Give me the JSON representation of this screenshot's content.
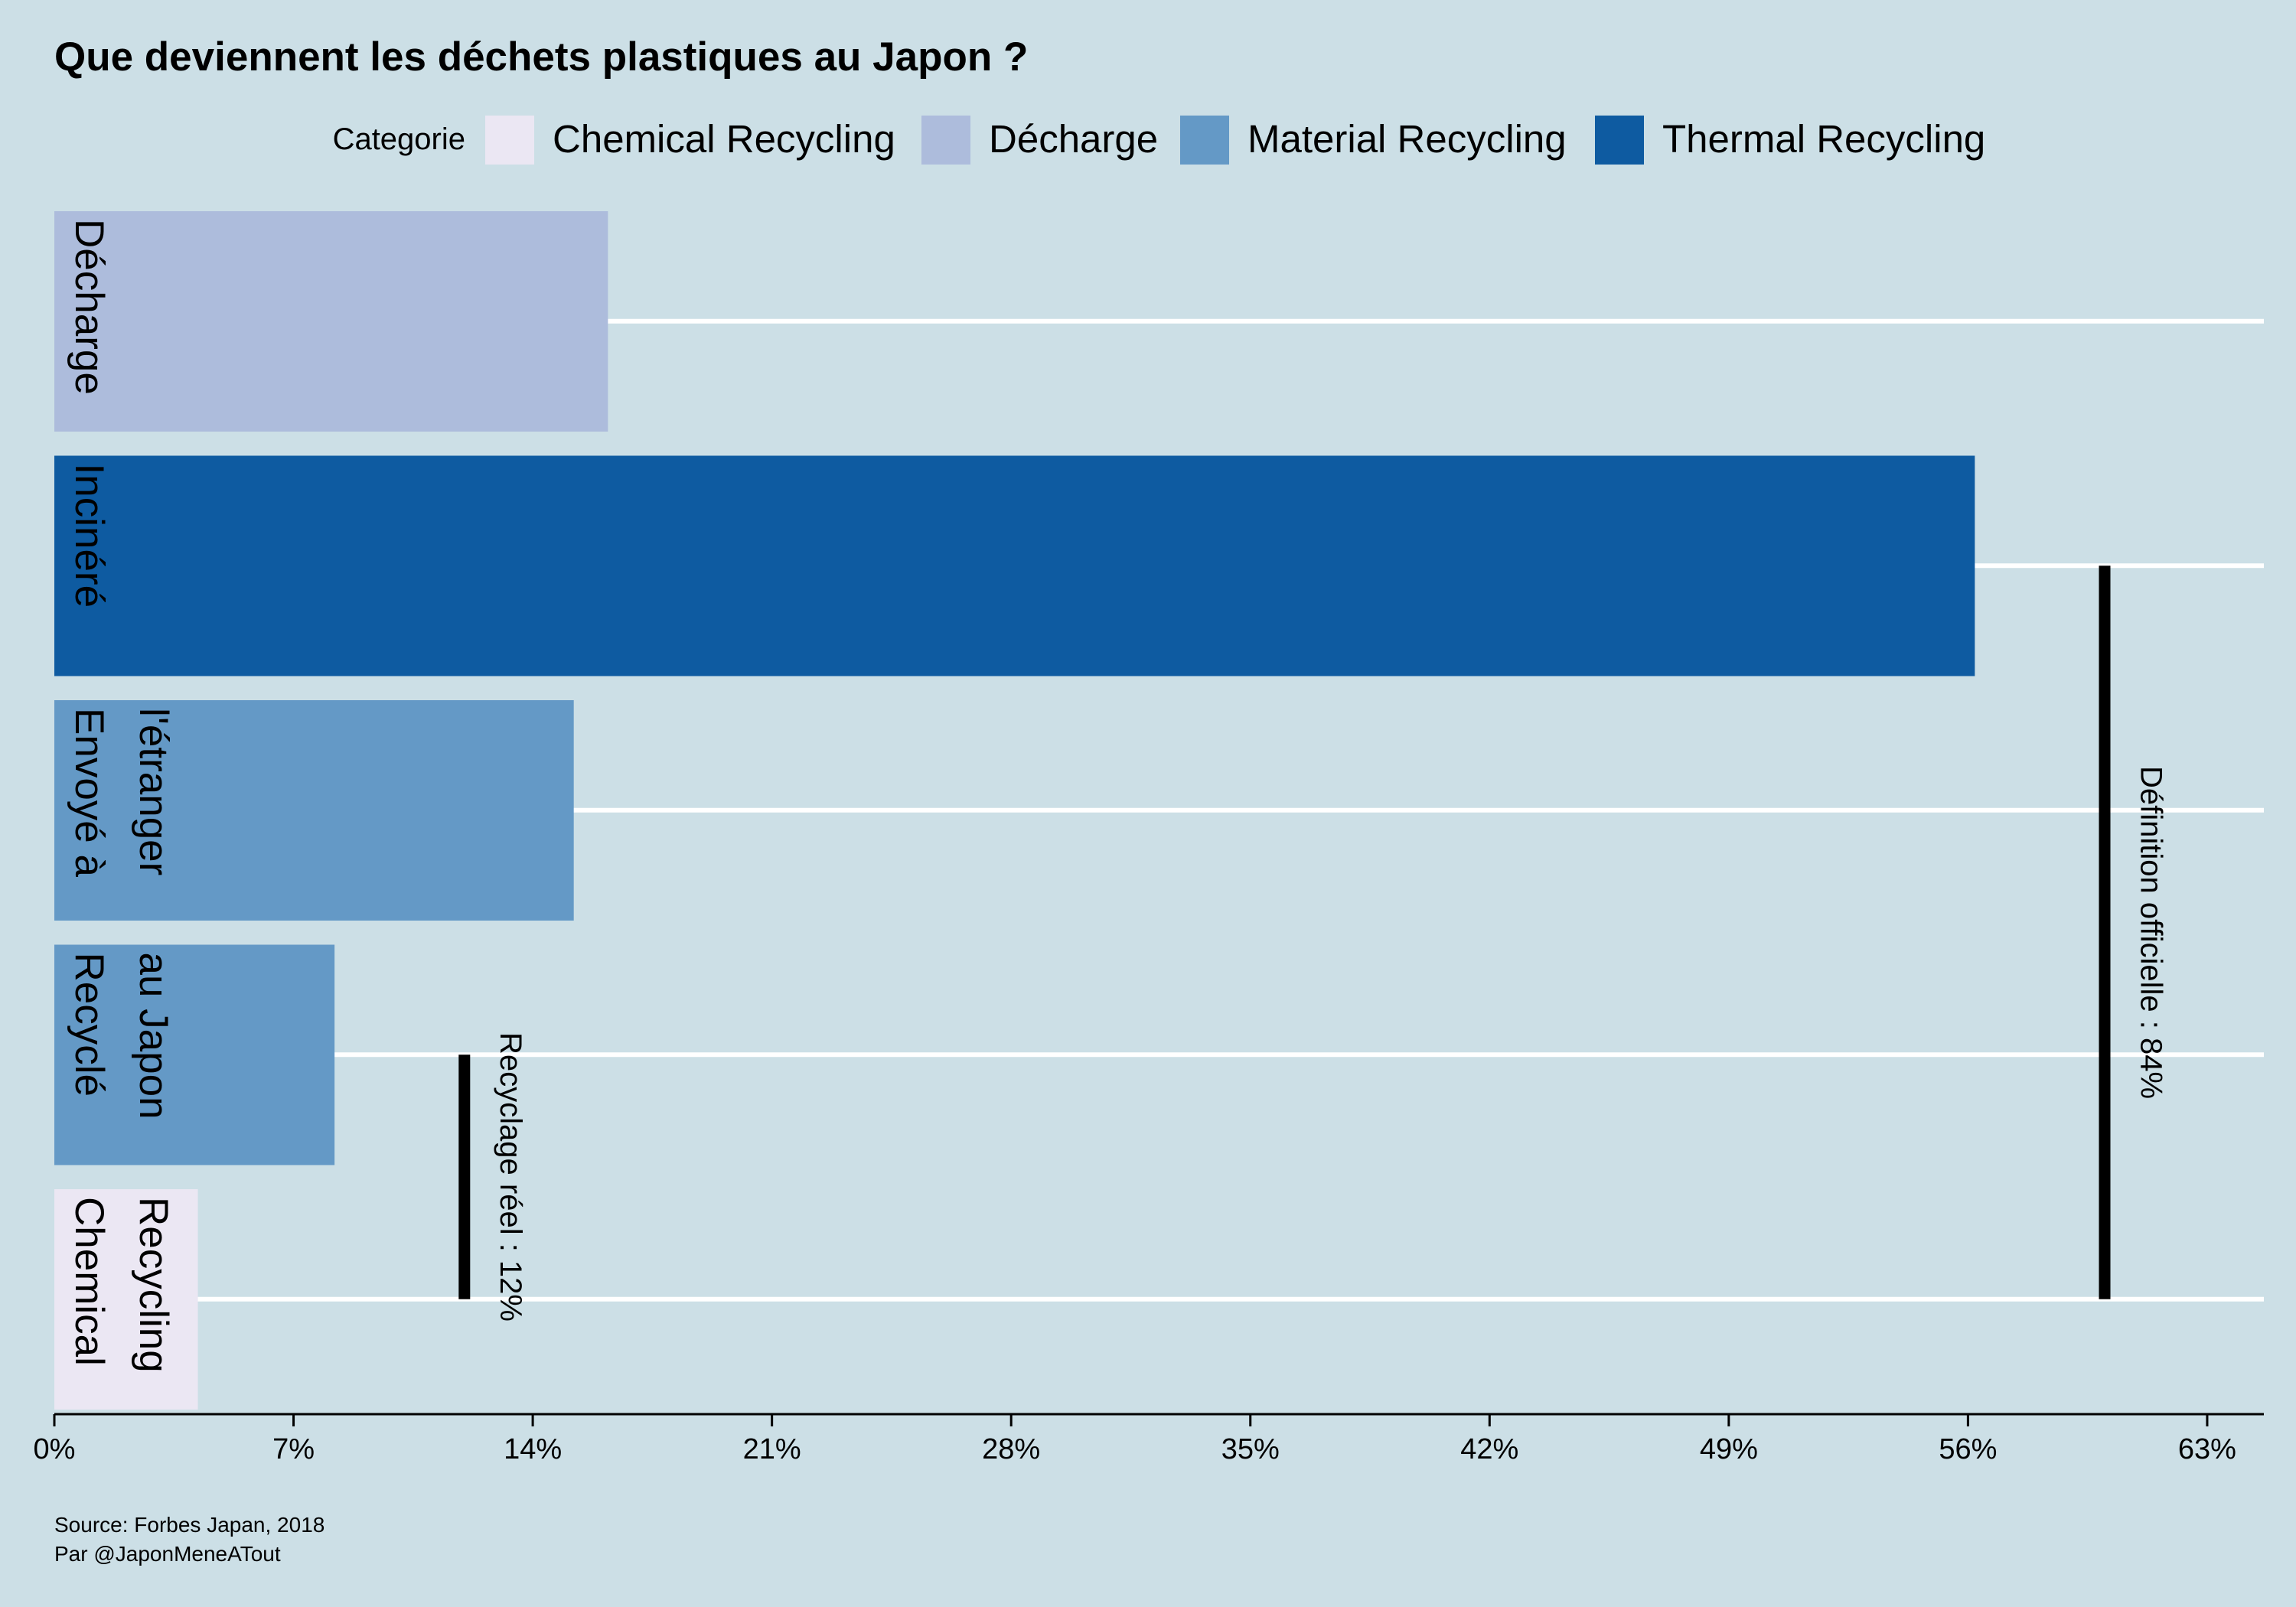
{
  "chart_data": {
    "type": "bar",
    "orientation": "horizontal",
    "title": "Que deviennent les déchets plastiques au Japon ?",
    "legend": {
      "title": "Categorie",
      "position": "top",
      "entries": [
        {
          "label": "Chemical Recycling",
          "color": "#ebe7f3"
        },
        {
          "label": "Décharge",
          "color": "#adbcdc"
        },
        {
          "label": "Material Recycling",
          "color": "#6499c6"
        },
        {
          "label": "Thermal Recycling",
          "color": "#0e5ba1"
        }
      ]
    },
    "bars": [
      {
        "label": "Décharge",
        "value": 16.2,
        "category": "Décharge"
      },
      {
        "label": "Incinéré",
        "value": 56.2,
        "category": "Thermal Recycling"
      },
      {
        "label": "Envoyé à l'étranger",
        "label_lines": [
          "Envoyé à",
          "l'étranger"
        ],
        "value": 15.2,
        "category": "Material Recycling"
      },
      {
        "label": "Recyclé au Japon",
        "label_lines": [
          "Recyclé",
          "au Japon"
        ],
        "value": 8.2,
        "category": "Material Recycling"
      },
      {
        "label": "Chemical Recycling",
        "label_lines": [
          "Chemical",
          "Recycling"
        ],
        "value": 4.2,
        "category": "Chemical Recycling"
      }
    ],
    "xlim": [
      0,
      65
    ],
    "xticks": [
      0,
      7,
      14,
      21,
      28,
      35,
      42,
      49,
      56,
      63
    ],
    "xtick_labels": [
      "0%",
      "7%",
      "14%",
      "21%",
      "28%",
      "35%",
      "42%",
      "49%",
      "56%",
      "63%"
    ],
    "grid": "horizontal lines at each bar",
    "annotations": [
      {
        "text": "Recyclage réel : 12%",
        "x": 12,
        "from_bar": 4,
        "to_bar": 5
      },
      {
        "text": "Définition officielle : 84%",
        "x": 60,
        "from_bar": 2,
        "to_bar": 5
      }
    ]
  },
  "caption": {
    "source": "Source: Forbes Japan, 2018",
    "author": "Par @JaponMeneATout"
  }
}
